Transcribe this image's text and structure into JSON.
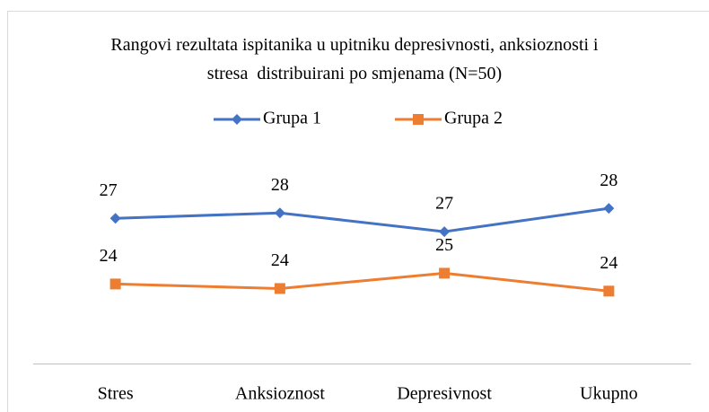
{
  "chart_data": {
    "type": "line",
    "title": "Rangovi rezultata ispitanika u upitniku depresivnosti, anksioznosti i stresa  distribuirani po smjenama (N=50)",
    "categories": [
      "Stres",
      "Anksioznost",
      "Depresivnost",
      "Ukupno"
    ],
    "series": [
      {
        "name": "Grupa 1",
        "color": "#4472c4",
        "values": [
          27.45,
          27.7,
          26.83,
          27.91
        ],
        "value_labels": [
          "27",
          "28",
          "27",
          "28"
        ]
      },
      {
        "name": "Grupa 2",
        "color": "#ed7d31",
        "values": [
          24.4,
          24.19,
          24.9,
          24.07
        ],
        "value_labels": [
          "24",
          "24",
          "25",
          "24"
        ]
      }
    ],
    "ylim": [
      21,
      29
    ],
    "legend": "top"
  }
}
